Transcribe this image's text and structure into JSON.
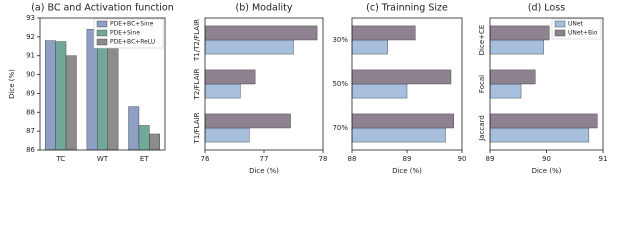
{
  "chart_data": [
    {
      "type": "bar",
      "title": "(a) BC and Activation function",
      "y_label": "Dice (%)",
      "categories": [
        "TC",
        "WT",
        "ET"
      ],
      "series": [
        {
          "name": "PDE+BC+Sine",
          "color": "#8e9fc4",
          "values": [
            91.8,
            92.4,
            88.3
          ]
        },
        {
          "name": "PDE+Sine",
          "color": "#72a89a",
          "values": [
            91.75,
            92.35,
            87.3
          ]
        },
        {
          "name": "PDE+BC+ReLU",
          "color": "#8c8c8c",
          "values": [
            91.0,
            91.85,
            86.85
          ]
        }
      ],
      "ylim": [
        86,
        93
      ],
      "yticks": [
        86,
        87,
        88,
        89,
        90,
        91,
        92,
        93
      ],
      "legend": "upper right"
    },
    {
      "type": "barh",
      "title": "(b) Modality",
      "x_label": "Dice (%)",
      "categories": [
        "T1/T2/FLAIR",
        "T2/FLAIR",
        "T1/FLAIR"
      ],
      "series": [
        {
          "color": "#a7bfdc",
          "values": [
            77.5,
            76.6,
            76.75
          ]
        },
        {
          "color": "#8f8290",
          "values": [
            77.9,
            76.85,
            77.45
          ]
        }
      ],
      "xlim": [
        76,
        78
      ],
      "xticks": [
        76,
        77,
        78
      ]
    },
    {
      "type": "barh",
      "title": "(c) Trainning Size",
      "x_label": "Dice (%)",
      "categories": [
        "30%",
        "50%",
        "70%"
      ],
      "series": [
        {
          "color": "#a7bfdc",
          "values": [
            88.65,
            89.0,
            89.7
          ]
        },
        {
          "color": "#8f8290",
          "values": [
            89.15,
            89.8,
            89.85
          ]
        }
      ],
      "xlim": [
        88,
        90
      ],
      "xticks": [
        88,
        89,
        90
      ]
    },
    {
      "type": "barh",
      "title": "(d) Loss",
      "x_label": "Dice (%)",
      "categories": [
        "Dice+CE",
        "Focal",
        "Jaccard"
      ],
      "series": [
        {
          "name": "UNet",
          "color": "#a7bfdc",
          "values": [
            89.95,
            89.55,
            90.75
          ]
        },
        {
          "name": "UNet+Bio",
          "color": "#8f8290",
          "values": [
            90.05,
            89.8,
            90.9
          ]
        }
      ],
      "xlim": [
        89,
        91
      ],
      "xticks": [
        89,
        90,
        91
      ],
      "legend": "upper right"
    }
  ]
}
